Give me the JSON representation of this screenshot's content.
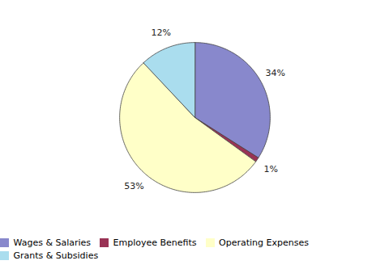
{
  "chart_data": {
    "type": "pie",
    "categories": [
      "Wages & Salaries",
      "Employee Benefits",
      "Operating Expenses",
      "Grants & Subsidies"
    ],
    "values": [
      34,
      1,
      53,
      12
    ],
    "value_labels": [
      "34%",
      "1%",
      "53%",
      "12%"
    ],
    "colors": [
      "#8888CC",
      "#993355",
      "#FFFFC8",
      "#AADDEE"
    ],
    "data_labels": true,
    "legend": "bottom"
  }
}
